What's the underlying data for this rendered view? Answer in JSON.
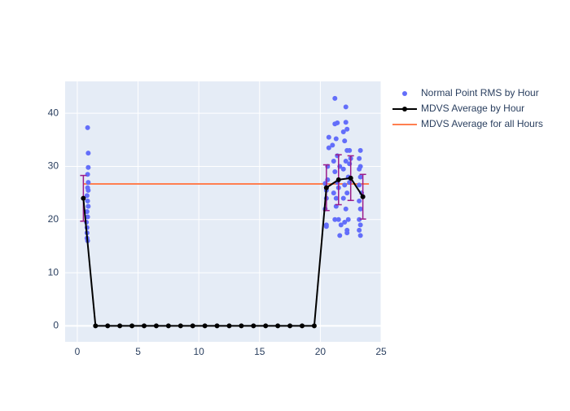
{
  "chart_data": {
    "type": "scatter",
    "xlim": [
      -1,
      25
    ],
    "ylim": [
      -3,
      46
    ],
    "xticks": [
      0,
      5,
      10,
      15,
      20,
      25
    ],
    "yticks": [
      0,
      10,
      20,
      30,
      40
    ],
    "grid": true,
    "legend": "right",
    "series": [
      {
        "name": "Normal Point RMS by Hour",
        "type": "scatter",
        "color": "#636efa",
        "x": [
          0.85,
          0.9,
          0.9,
          0.85,
          0.9,
          0.85,
          0.9,
          0.8,
          0.85,
          0.9,
          0.8,
          0.85,
          0.75,
          0.8,
          0.8,
          0.8,
          0.85,
          20.4,
          20.5,
          20.4,
          20.5,
          20.6,
          20.5,
          20.6,
          20.5,
          20.7,
          20.7,
          21.2,
          21.2,
          21.4,
          21,
          21.3,
          21.1,
          21.2,
          21.4,
          21.1,
          21.3,
          21.2,
          21.5,
          21.6,
          21.7,
          21.5,
          21.6,
          21.4,
          21.3,
          22.1,
          22.1,
          22.2,
          21.9,
          22,
          22.2,
          22.4,
          22.1,
          21.9,
          22.3,
          22,
          22.2,
          21.9,
          22.1,
          22.3,
          22,
          22.2,
          22.2,
          22.4,
          22.5,
          22.4,
          23.3,
          23.2,
          23.3,
          23.2,
          23.3,
          23.2,
          23.4,
          23.2,
          23.3,
          23.2,
          23.3,
          23.2,
          23.3
        ],
        "values": [
          37.3,
          32.5,
          29.8,
          28.5,
          27,
          26,
          25.5,
          24.5,
          23.5,
          22.5,
          21.5,
          20.5,
          19.5,
          18.5,
          17.5,
          16.5,
          16,
          26.8,
          24,
          22,
          19,
          30,
          18.7,
          27.5,
          25.5,
          33.5,
          35.5,
          42.8,
          38,
          38.2,
          34,
          35.2,
          31,
          29,
          27,
          25,
          24,
          20,
          20,
          17,
          19,
          26,
          30,
          32,
          22.5,
          41.2,
          38.3,
          37,
          36.5,
          34.8,
          33,
          33,
          31,
          29.5,
          28,
          26.5,
          25,
          24,
          22,
          20,
          19.5,
          18,
          17.5,
          30.5,
          31.5,
          27,
          33,
          31.5,
          30,
          29.5,
          28,
          26.5,
          25,
          23.5,
          22,
          20,
          19,
          18,
          17
        ]
      },
      {
        "name": "MDVS Average by Hour",
        "type": "line",
        "color": "#000000",
        "error_color": "#9b1b8b",
        "x": [
          0.5,
          1.5,
          2.5,
          3.5,
          4.5,
          5.5,
          6.5,
          7.5,
          8.5,
          9.5,
          10.5,
          11.5,
          12.5,
          13.5,
          14.5,
          15.5,
          16.5,
          17.5,
          18.5,
          19.5,
          20.5,
          21.5,
          22.5,
          23.5
        ],
        "values": [
          24,
          0,
          0,
          0,
          0,
          0,
          0,
          0,
          0,
          0,
          0,
          0,
          0,
          0,
          0,
          0,
          0,
          0,
          0,
          0,
          26,
          27.5,
          27.8,
          24.3
        ],
        "error": [
          4.3,
          null,
          null,
          null,
          null,
          null,
          null,
          null,
          null,
          null,
          null,
          null,
          null,
          null,
          null,
          null,
          null,
          null,
          null,
          null,
          4.3,
          4.7,
          4.2,
          4.2
        ]
      },
      {
        "name": "MDVS Average for all Hours",
        "type": "hline",
        "color": "#ff7f50",
        "x": [
          0.5,
          24
        ],
        "values": [
          26.7,
          26.7
        ]
      }
    ]
  }
}
